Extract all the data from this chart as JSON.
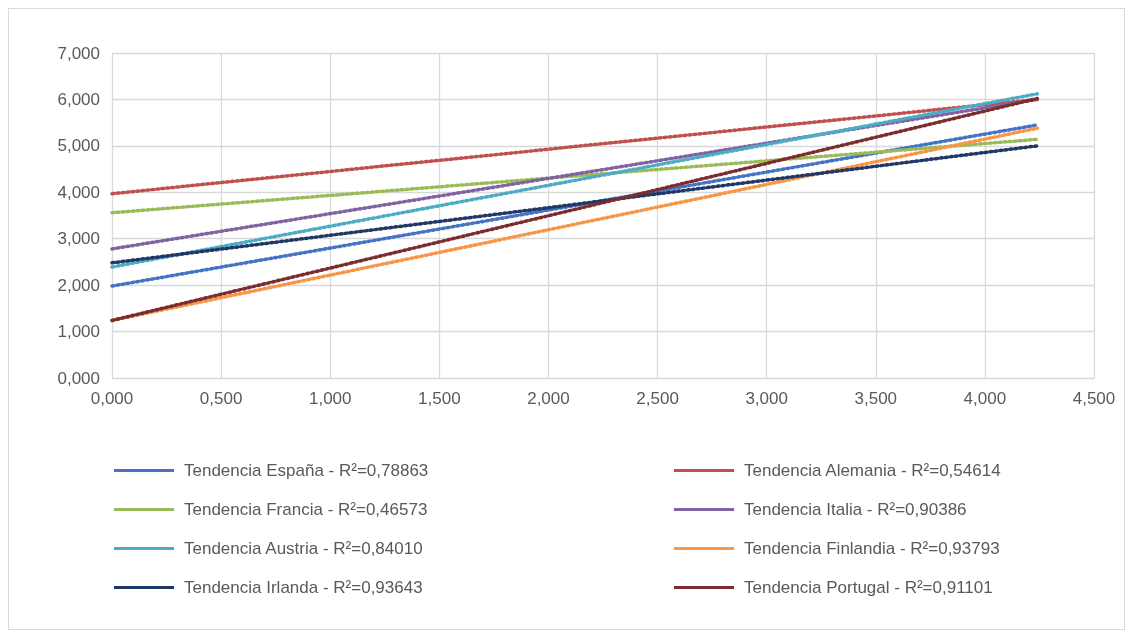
{
  "chart_data": {
    "type": "line",
    "line_style": "dotted",
    "marker": "none",
    "grid": true,
    "legend": "bottom",
    "xlim": [
      0,
      4.5
    ],
    "xticks": [
      {
        "value": 0,
        "label": "0,000"
      },
      {
        "value": 0.5,
        "label": "0,500"
      },
      {
        "value": 1,
        "label": "1,000"
      },
      {
        "value": 1.5,
        "label": "1,500"
      },
      {
        "value": 2,
        "label": "2,000"
      },
      {
        "value": 2.5,
        "label": "2,500"
      },
      {
        "value": 3,
        "label": "3,000"
      },
      {
        "value": 3.5,
        "label": "3,500"
      },
      {
        "value": 4,
        "label": "4,000"
      },
      {
        "value": 4.5,
        "label": "4,500"
      }
    ],
    "ylim": [
      0,
      7
    ],
    "yticks": [
      {
        "value": 0,
        "label": "0,000"
      },
      {
        "value": 1,
        "label": "1,000"
      },
      {
        "value": 2,
        "label": "2,000"
      },
      {
        "value": 3,
        "label": "3,000"
      },
      {
        "value": 4,
        "label": "4,000"
      },
      {
        "value": 5,
        "label": "5,000"
      },
      {
        "value": 6,
        "label": "6,000"
      },
      {
        "value": 7,
        "label": "7,000"
      }
    ],
    "x": [
      0,
      4.24
    ],
    "series": [
      {
        "name": "Tendencia España - R²=0,78863",
        "color": "#4472c4",
        "values": [
          1.98,
          5.45
        ]
      },
      {
        "name": "Tendencia Alemania - R²=0,54614",
        "color": "#c0504d",
        "values": [
          3.97,
          6.0
        ]
      },
      {
        "name": "Tendencia Francia - R²=0,46573",
        "color": "#9bbb59",
        "values": [
          3.56,
          5.14
        ]
      },
      {
        "name": "Tendencia Italia - R²=0,90386",
        "color": "#8064a2",
        "values": [
          2.78,
          6.0
        ]
      },
      {
        "name": "Tendencia Austria - R²=0,84010",
        "color": "#4bacc6",
        "values": [
          2.39,
          6.12
        ]
      },
      {
        "name": "Tendencia Finlandia - R²=0,93793",
        "color": "#f79646",
        "values": [
          1.24,
          5.38
        ]
      },
      {
        "name": "Tendencia Irlanda - R²=0,93643",
        "color": "#1f3864",
        "values": [
          2.48,
          5.0
        ]
      },
      {
        "name": "Tendencia Portugal - R²=0,91101",
        "color": "#7b2c2c",
        "values": [
          1.24,
          6.02
        ]
      }
    ]
  }
}
